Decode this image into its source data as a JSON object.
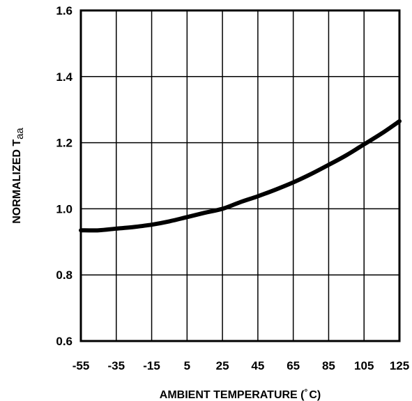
{
  "chart_data": {
    "type": "line",
    "title": "",
    "xlabel": "AMBIENT TEMPERATURE (",
    "xlabel_symbol": "°",
    "xlabel_unit": "C)",
    "ylabel": "NORMALIZED T",
    "ylabel_sub": "aa",
    "xlim": [
      -55,
      125
    ],
    "ylim": [
      0.6,
      1.6
    ],
    "x_ticks": [
      "-55",
      "-35",
      "-15",
      "5",
      "25",
      "45",
      "65",
      "85",
      "105",
      "125"
    ],
    "y_ticks": [
      "0.6",
      "0.8",
      "1.0",
      "1.2",
      "1.4",
      "1.6"
    ],
    "grid": true,
    "legend": "none",
    "line_color": "#000000",
    "series": [
      {
        "x": [
          -55,
          -45,
          -35,
          -25,
          -15,
          -5,
          5,
          15,
          25,
          35,
          45,
          55,
          65,
          75,
          85,
          95,
          105,
          115,
          125
        ],
        "values": [
          0.935,
          0.935,
          0.94,
          0.945,
          0.952,
          0.962,
          0.975,
          0.988,
          1.0,
          1.02,
          1.038,
          1.058,
          1.08,
          1.105,
          1.133,
          1.162,
          1.195,
          1.228,
          1.265
        ]
      }
    ]
  }
}
